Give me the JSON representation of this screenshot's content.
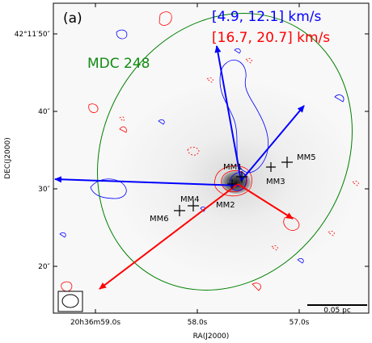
{
  "panel_label": "(a)",
  "cloud_label": "MDC 248",
  "velocity_ranges": {
    "blue": "[4.9, 12.1] km/s",
    "red": "[16.7, 20.7] km/s"
  },
  "axes": {
    "xlabel": "RA(J2000)",
    "ylabel": "DEC(J2000)",
    "x_ticks": [
      {
        "label": "20h36m59.0s"
      },
      {
        "label": "58.0s"
      },
      {
        "label": "57.0s"
      }
    ],
    "y_ticks": [
      {
        "label": "42°11′50″"
      },
      {
        "label": "40″"
      },
      {
        "label": "30″"
      },
      {
        "label": "20″"
      }
    ]
  },
  "sources": [
    "MM1",
    "MM2",
    "MM3",
    "MM4",
    "MM5",
    "MM6"
  ],
  "scale_bar": "0.05 pc",
  "colors": {
    "blue_lobe": "#0000ff",
    "red_lobe": "#ff0000",
    "ellipse": "#008000",
    "label_green": "#138a13"
  }
}
